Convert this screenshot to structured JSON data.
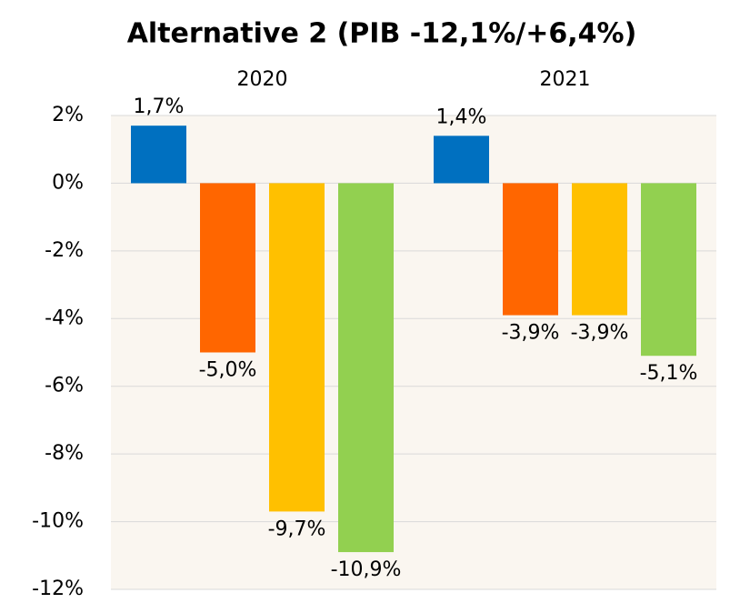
{
  "chart_data": {
    "type": "bar",
    "title": "Alternative 2 (PIB -12,1%/+6,4%)",
    "categories": [
      "2020",
      "2021"
    ],
    "series": [
      {
        "color": "#0070c0",
        "values": [
          1.7,
          1.4
        ],
        "value_labels": [
          "1,7%",
          "1,4%"
        ]
      },
      {
        "color": "#ff6600",
        "values": [
          -5.0,
          -3.9
        ],
        "value_labels": [
          "-5,0%",
          "-3,9%"
        ]
      },
      {
        "color": "#ffc000",
        "values": [
          -9.7,
          -3.9
        ],
        "value_labels": [
          "-9,7%",
          "-3,9%"
        ]
      },
      {
        "color": "#92d050",
        "values": [
          -10.9,
          -5.1
        ],
        "value_labels": [
          "-10,9%",
          "-5,1%"
        ]
      }
    ],
    "ylim": [
      -12,
      2
    ],
    "yticks": [
      {
        "value": 2,
        "label": "2%"
      },
      {
        "value": 0,
        "label": "0%"
      },
      {
        "value": -2,
        "label": "-2%"
      },
      {
        "value": -4,
        "label": "-4%"
      },
      {
        "value": -6,
        "label": "-6%"
      },
      {
        "value": -8,
        "label": "-8%"
      },
      {
        "value": -10,
        "label": "-10%"
      },
      {
        "value": -12,
        "label": "-12%"
      }
    ],
    "grid": true
  }
}
